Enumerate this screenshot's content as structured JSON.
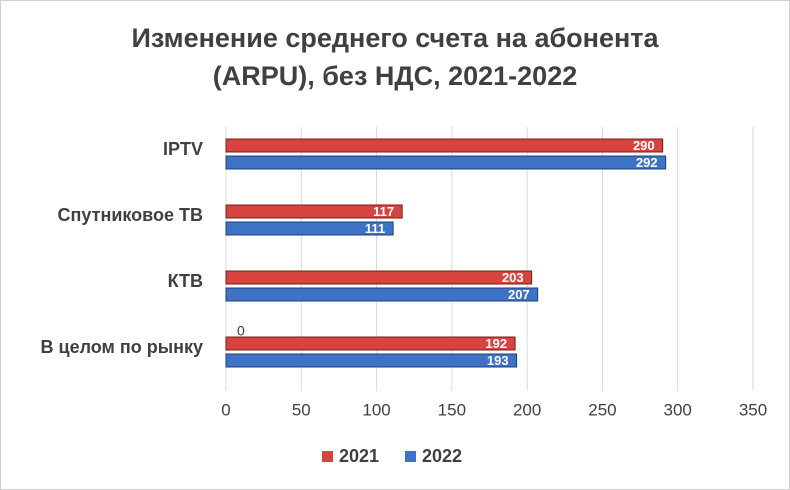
{
  "chart_data": {
    "type": "bar",
    "orientation": "horizontal",
    "title": [
      "Изменение среднего счета на абонента",
      "(ARPU), без НДС, 2021-2022"
    ],
    "categories": [
      "IPTV",
      "Спутниковое ТВ",
      "КТВ",
      "В целом по рынку"
    ],
    "series": [
      {
        "name": "2021",
        "color": "#d7433f",
        "values": [
          290,
          117,
          203,
          192
        ]
      },
      {
        "name": "2022",
        "color": "#3e72c5",
        "values": [
          292,
          111,
          207,
          193
        ]
      }
    ],
    "annotation": "0",
    "xlim": [
      0,
      350
    ],
    "xticks": [
      0,
      50,
      100,
      150,
      200,
      250,
      300,
      350
    ],
    "grid": true,
    "legend": "bottom"
  }
}
